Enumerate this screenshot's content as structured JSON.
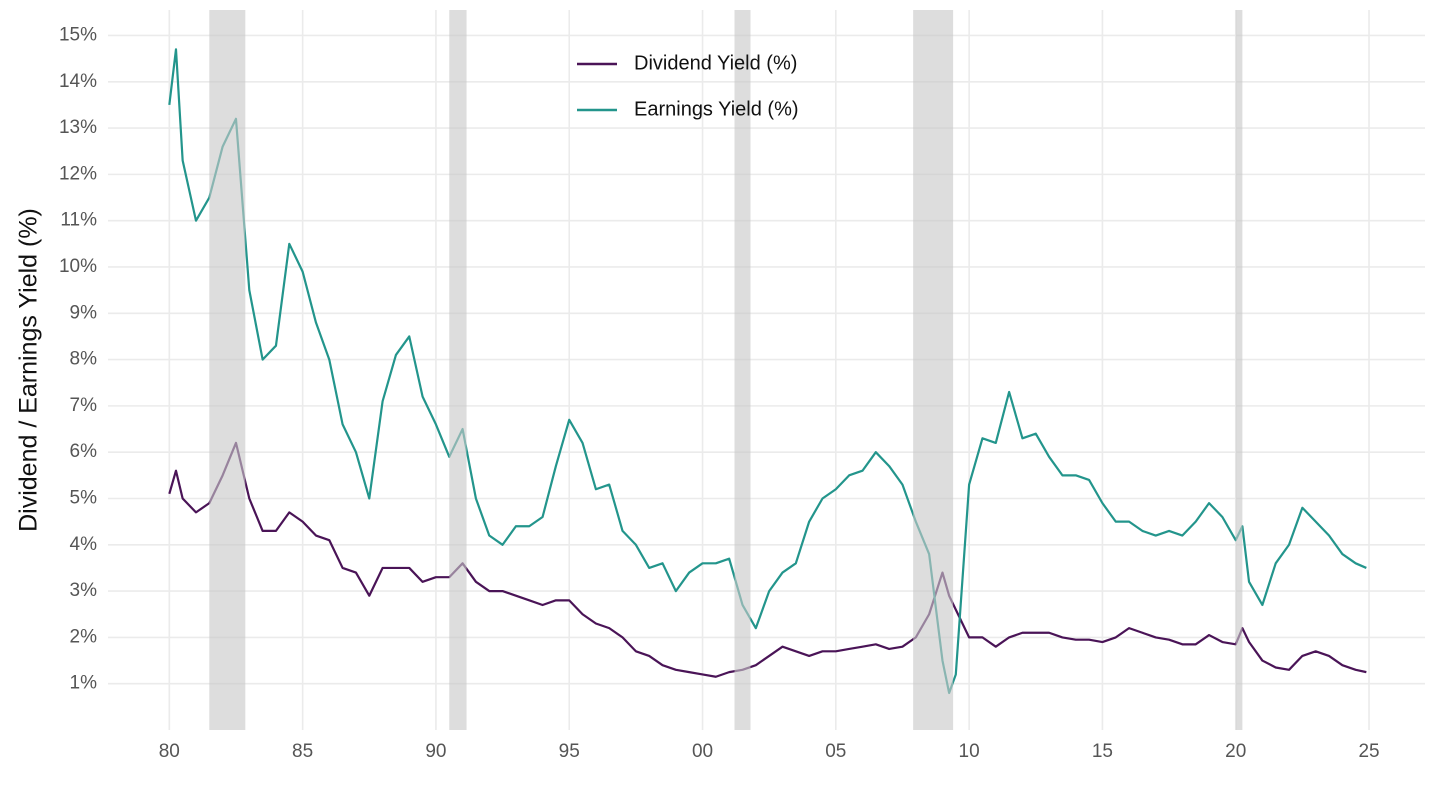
{
  "chart_data": {
    "type": "line",
    "ylabel": "Dividend / Earnings Yield (%)",
    "x": [
      1980.0,
      1980.25,
      1980.5,
      1981.0,
      1981.5,
      1982.0,
      1982.5,
      1983.0,
      1983.5,
      1984.0,
      1984.5,
      1985.0,
      1985.5,
      1986.0,
      1986.5,
      1987.0,
      1987.5,
      1988.0,
      1988.5,
      1989.0,
      1989.5,
      1990.0,
      1990.5,
      1991.0,
      1991.5,
      1992.0,
      1992.5,
      1993.0,
      1993.5,
      1994.0,
      1994.5,
      1995.0,
      1995.5,
      1996.0,
      1996.5,
      1997.0,
      1997.5,
      1998.0,
      1998.5,
      1999.0,
      1999.5,
      2000.0,
      2000.5,
      2001.0,
      2001.5,
      2002.0,
      2002.5,
      2003.0,
      2003.5,
      2004.0,
      2004.5,
      2005.0,
      2005.5,
      2006.0,
      2006.5,
      2007.0,
      2007.5,
      2008.0,
      2008.5,
      2009.0,
      2009.25,
      2009.5,
      2010.0,
      2010.5,
      2011.0,
      2011.5,
      2012.0,
      2012.5,
      2013.0,
      2013.5,
      2014.0,
      2014.5,
      2015.0,
      2015.5,
      2016.0,
      2016.5,
      2017.0,
      2017.5,
      2018.0,
      2018.5,
      2019.0,
      2019.5,
      2020.0,
      2020.25,
      2020.5,
      2021.0,
      2021.5,
      2022.0,
      2022.5,
      2023.0,
      2023.5,
      2024.0,
      2024.5,
      2024.9
    ],
    "series": [
      {
        "name": "Dividend Yield (%)",
        "color": "#4a1457",
        "values": [
          5.1,
          5.6,
          5.0,
          4.7,
          4.9,
          5.5,
          6.2,
          5.0,
          4.3,
          4.3,
          4.7,
          4.5,
          4.2,
          4.1,
          3.5,
          3.4,
          2.9,
          3.5,
          3.5,
          3.5,
          3.2,
          3.3,
          3.3,
          3.6,
          3.2,
          3.0,
          3.0,
          2.9,
          2.8,
          2.7,
          2.8,
          2.8,
          2.5,
          2.3,
          2.2,
          2.0,
          1.7,
          1.6,
          1.4,
          1.3,
          1.25,
          1.2,
          1.15,
          1.25,
          1.3,
          1.4,
          1.6,
          1.8,
          1.7,
          1.6,
          1.7,
          1.7,
          1.75,
          1.8,
          1.85,
          1.75,
          1.8,
          2.0,
          2.5,
          3.4,
          2.9,
          2.6,
          2.0,
          2.0,
          1.8,
          2.0,
          2.1,
          2.1,
          2.1,
          2.0,
          1.95,
          1.95,
          1.9,
          2.0,
          2.2,
          2.1,
          2.0,
          1.95,
          1.85,
          1.85,
          2.05,
          1.9,
          1.85,
          2.2,
          1.9,
          1.5,
          1.35,
          1.3,
          1.6,
          1.7,
          1.6,
          1.4,
          1.3,
          1.25
        ]
      },
      {
        "name": "Earnings Yield (%)",
        "color": "#23958c",
        "values": [
          13.5,
          14.7,
          12.3,
          11.0,
          11.5,
          12.6,
          13.2,
          9.5,
          8.0,
          8.3,
          10.5,
          9.9,
          8.8,
          8.0,
          6.6,
          6.0,
          5.0,
          7.1,
          8.1,
          8.5,
          7.2,
          6.6,
          5.9,
          6.5,
          5.0,
          4.2,
          4.0,
          4.4,
          4.4,
          4.6,
          5.7,
          6.7,
          6.2,
          5.2,
          5.3,
          4.3,
          4.0,
          3.5,
          3.6,
          3.0,
          3.4,
          3.6,
          3.6,
          3.7,
          2.7,
          2.2,
          3.0,
          3.4,
          3.6,
          4.5,
          5.0,
          5.2,
          5.5,
          5.6,
          6.0,
          5.7,
          5.3,
          4.5,
          3.8,
          1.5,
          0.8,
          1.2,
          5.3,
          6.3,
          6.2,
          7.3,
          6.3,
          6.4,
          5.9,
          5.5,
          5.5,
          5.4,
          4.9,
          4.5,
          4.5,
          4.3,
          4.2,
          4.3,
          4.2,
          4.5,
          4.9,
          4.6,
          4.1,
          4.4,
          3.2,
          2.7,
          3.6,
          4.0,
          4.8,
          4.5,
          4.2,
          3.8,
          3.6,
          3.5
        ]
      }
    ],
    "recessions": [
      [
        1981.5,
        1982.85
      ],
      [
        1990.5,
        1991.15
      ],
      [
        2001.2,
        2001.8
      ],
      [
        2007.9,
        2009.4
      ],
      [
        2020.0,
        2020.25
      ]
    ],
    "xlim": [
      1977.7,
      2027.1
    ],
    "xticks": [
      {
        "value": 1980,
        "label": "80"
      },
      {
        "value": 1985,
        "label": "85"
      },
      {
        "value": 1990,
        "label": "90"
      },
      {
        "value": 1995,
        "label": "95"
      },
      {
        "value": 2000,
        "label": "00"
      },
      {
        "value": 2005,
        "label": "05"
      },
      {
        "value": 2010,
        "label": "10"
      },
      {
        "value": 2015,
        "label": "15"
      },
      {
        "value": 2020,
        "label": "20"
      },
      {
        "value": 2025,
        "label": "25"
      }
    ],
    "ylim": [
      0,
      15.55
    ],
    "yticks": [
      {
        "value": 1,
        "label": "1%"
      },
      {
        "value": 2,
        "label": "2%"
      },
      {
        "value": 3,
        "label": "3%"
      },
      {
        "value": 4,
        "label": "4%"
      },
      {
        "value": 5,
        "label": "5%"
      },
      {
        "value": 6,
        "label": "6%"
      },
      {
        "value": 7,
        "label": "7%"
      },
      {
        "value": 8,
        "label": "8%"
      },
      {
        "value": 9,
        "label": "9%"
      },
      {
        "value": 10,
        "label": "10%"
      },
      {
        "value": 11,
        "label": "11%"
      },
      {
        "value": 12,
        "label": "12%"
      },
      {
        "value": 13,
        "label": "13%"
      },
      {
        "value": 14,
        "label": "14%"
      },
      {
        "value": 15,
        "label": "15%"
      }
    ],
    "grid": true,
    "legend": "top"
  }
}
